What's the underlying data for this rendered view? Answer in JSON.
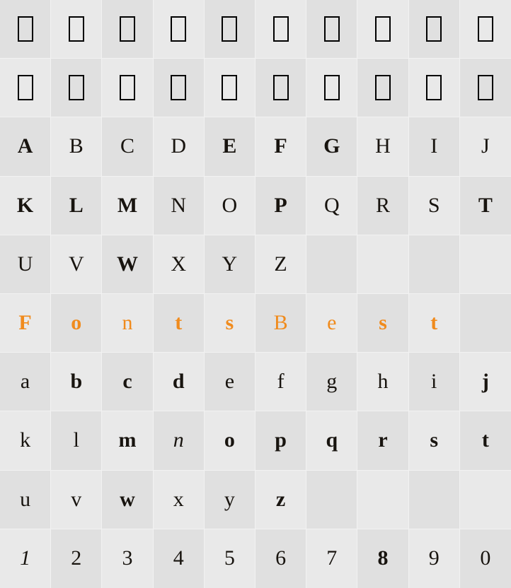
{
  "columns": 10,
  "rows": 10,
  "missing_glyph_rows": 2,
  "glyph_box": {
    "border_color": "#000000",
    "border_width": 2.5,
    "width": 22,
    "height": 36
  },
  "colors": {
    "background": "#e6e6e6",
    "cell_plain": "#e9e9e9",
    "cell_alt": "#e0e0e0",
    "grid_line": "#f2f2f2",
    "text": "#18140f",
    "accent": "#f08b1d"
  },
  "typography": {
    "family": "Georgia, Times New Roman, serif",
    "base_size": 30,
    "bold_weight": 900
  },
  "upper_rows": [
    [
      {
        "char": "A",
        "bold": true
      },
      {
        "char": "B"
      },
      {
        "char": "C"
      },
      {
        "char": "D"
      },
      {
        "char": "E",
        "bold": true
      },
      {
        "char": "F",
        "bold": true
      },
      {
        "char": "G",
        "bold": true
      },
      {
        "char": "H"
      },
      {
        "char": "I"
      },
      {
        "char": "J"
      }
    ],
    [
      {
        "char": "K",
        "bold": true
      },
      {
        "char": "L",
        "bold": true
      },
      {
        "char": "M",
        "bold": true
      },
      {
        "char": "N"
      },
      {
        "char": "O"
      },
      {
        "char": "P",
        "bold": true
      },
      {
        "char": "Q"
      },
      {
        "char": "R"
      },
      {
        "char": "S"
      },
      {
        "char": "T",
        "bold": true
      }
    ],
    [
      {
        "char": "U"
      },
      {
        "char": "V"
      },
      {
        "char": "W",
        "bold": true
      },
      {
        "char": "X"
      },
      {
        "char": "Y"
      },
      {
        "char": "Z"
      },
      {
        "char": ""
      },
      {
        "char": ""
      },
      {
        "char": ""
      },
      {
        "char": ""
      }
    ]
  ],
  "watermark": {
    "chars": [
      "F",
      "o",
      "n",
      "t",
      "s",
      "B",
      "e",
      "s",
      "t",
      ""
    ],
    "bold_flags": [
      true,
      true,
      false,
      true,
      true,
      false,
      false,
      true,
      true,
      false
    ]
  },
  "lower_rows": [
    [
      {
        "char": "a"
      },
      {
        "char": "b",
        "bold": true
      },
      {
        "char": "c",
        "bold": true
      },
      {
        "char": "d",
        "bold": true
      },
      {
        "char": "e"
      },
      {
        "char": "f"
      },
      {
        "char": "g"
      },
      {
        "char": "h"
      },
      {
        "char": "i"
      },
      {
        "char": "j",
        "bold": true
      }
    ],
    [
      {
        "char": "k"
      },
      {
        "char": "l"
      },
      {
        "char": "m",
        "bold": true
      },
      {
        "char": "n",
        "italic": true
      },
      {
        "char": "o",
        "bold": true
      },
      {
        "char": "p",
        "bold": true
      },
      {
        "char": "q",
        "bold": true
      },
      {
        "char": "r",
        "bold": true
      },
      {
        "char": "s",
        "bold": true
      },
      {
        "char": "t",
        "bold": true
      }
    ],
    [
      {
        "char": "u"
      },
      {
        "char": "v"
      },
      {
        "char": "w",
        "bold": true
      },
      {
        "char": "x"
      },
      {
        "char": "y"
      },
      {
        "char": "z",
        "bold": true
      },
      {
        "char": ""
      },
      {
        "char": ""
      },
      {
        "char": ""
      },
      {
        "char": ""
      }
    ]
  ],
  "digits_row": [
    {
      "char": "1",
      "italic": true
    },
    {
      "char": "2"
    },
    {
      "char": "3"
    },
    {
      "char": "4"
    },
    {
      "char": "5"
    },
    {
      "char": "6"
    },
    {
      "char": "7"
    },
    {
      "char": "8",
      "bold": true
    },
    {
      "char": "9"
    },
    {
      "char": "0"
    }
  ]
}
